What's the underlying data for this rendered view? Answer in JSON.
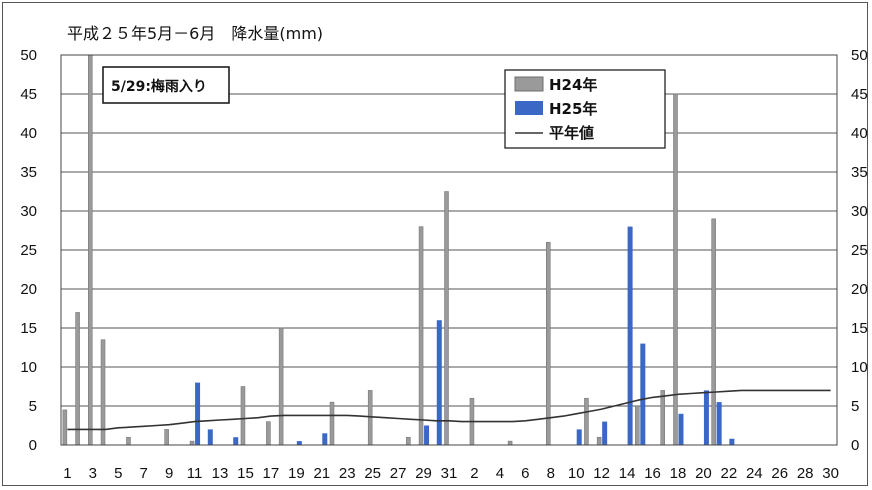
{
  "chart_data": {
    "type": "bar",
    "title": "平成２５年5月－6月　降水量(mm)",
    "annotation": "5/29:梅雨入り",
    "ylim": [
      0,
      50
    ],
    "y_ticks": [
      0,
      5,
      10,
      15,
      20,
      25,
      30,
      35,
      40,
      45,
      50
    ],
    "x_tick_labels": [
      "1",
      "3",
      "5",
      "7",
      "9",
      "11",
      "13",
      "15",
      "17",
      "19",
      "21",
      "23",
      "25",
      "27",
      "29",
      "31",
      "2",
      "4",
      "6",
      "8",
      "10",
      "12",
      "14",
      "16",
      "18",
      "20",
      "22",
      "24",
      "26",
      "28",
      "30"
    ],
    "grid": true,
    "legend_position": "top-right",
    "colors": {
      "h24": "#9a9a9a",
      "h25": "#3b67c6",
      "normal": "#333333"
    },
    "categories": [
      "5/1",
      "5/2",
      "5/3",
      "5/4",
      "5/5",
      "5/6",
      "5/7",
      "5/8",
      "5/9",
      "5/10",
      "5/11",
      "5/12",
      "5/13",
      "5/14",
      "5/15",
      "5/16",
      "5/17",
      "5/18",
      "5/19",
      "5/20",
      "5/21",
      "5/22",
      "5/23",
      "5/24",
      "5/25",
      "5/26",
      "5/27",
      "5/28",
      "5/29",
      "5/30",
      "5/31",
      "6/1",
      "6/2",
      "6/3",
      "6/4",
      "6/5",
      "6/6",
      "6/7",
      "6/8",
      "6/9",
      "6/10",
      "6/11",
      "6/12",
      "6/13",
      "6/14",
      "6/15",
      "6/16",
      "6/17",
      "6/18",
      "6/19",
      "6/20",
      "6/21",
      "6/22",
      "6/23",
      "6/24",
      "6/25",
      "6/26",
      "6/27",
      "6/28",
      "6/29",
      "6/30"
    ],
    "series": [
      {
        "name": "H24年",
        "type": "bar",
        "values": [
          4.5,
          17,
          50,
          13.5,
          0,
          1,
          0,
          0,
          2,
          0,
          0.5,
          0,
          0,
          0,
          7.5,
          0,
          3,
          15,
          0,
          0,
          0,
          5.5,
          0,
          0,
          7,
          0,
          0,
          1,
          28,
          0,
          32.5,
          0,
          6,
          0,
          0,
          0.5,
          0,
          0,
          26,
          0,
          0,
          6,
          1,
          0,
          0,
          5,
          0,
          7,
          45,
          0,
          0,
          29,
          0,
          0,
          0,
          0,
          0,
          0,
          0,
          0,
          0
        ]
      },
      {
        "name": "H25年",
        "type": "bar",
        "values": [
          0,
          0,
          0,
          0,
          0,
          0,
          0,
          0,
          0,
          0,
          8,
          2,
          0,
          1,
          0,
          0,
          0,
          0,
          0.5,
          0,
          1.5,
          0,
          0,
          0,
          0,
          0,
          0,
          0,
          2.5,
          16,
          0,
          0,
          0,
          0,
          0,
          0,
          0,
          0,
          0,
          0,
          2,
          0,
          3,
          0,
          28,
          13,
          0,
          0,
          4,
          0,
          7,
          5.5,
          0.8,
          0,
          0,
          0,
          0,
          0,
          0,
          0,
          0
        ]
      },
      {
        "name": "平年値",
        "type": "line",
        "values": [
          2,
          2,
          2,
          2,
          2.2,
          2.3,
          2.4,
          2.5,
          2.6,
          2.8,
          3,
          3.1,
          3.2,
          3.3,
          3.4,
          3.5,
          3.7,
          3.8,
          3.8,
          3.8,
          3.8,
          3.8,
          3.8,
          3.7,
          3.6,
          3.5,
          3.4,
          3.3,
          3.2,
          3.1,
          3.1,
          3,
          3,
          3,
          3,
          3,
          3.1,
          3.3,
          3.5,
          3.7,
          4,
          4.3,
          4.6,
          5,
          5.4,
          5.8,
          6.1,
          6.3,
          6.5,
          6.6,
          6.7,
          6.8,
          6.9,
          7,
          7,
          7,
          7,
          7,
          7,
          7,
          7
        ]
      }
    ]
  }
}
